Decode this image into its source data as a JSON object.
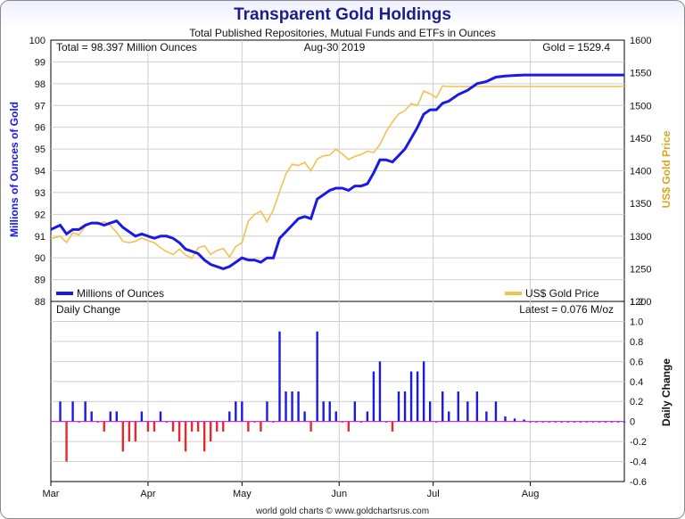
{
  "chart_data": {
    "type": "line",
    "title": "Transparent Gold Holdings",
    "subtitle": "Total Published Repositories, Mutual Funds and ETFs in Ounces",
    "annotations": {
      "total": "Total = 98.397 Million Ounces",
      "date": "Aug-30  2019",
      "gold": "Gold = 1529.4",
      "daily_title": "Daily Change",
      "latest": "Latest = 0.076 M/oz"
    },
    "ylabel_left": "Millions of Ounces of Gold",
    "ylabel_right": "US$ Gold Price",
    "ylabel_daily": "Daily Change",
    "footer": "world gold charts © www.goldchartsrus.com",
    "x_months": [
      "Mar",
      "Apr",
      "May",
      "Jun",
      "Jul",
      "Aug"
    ],
    "ylim_left": [
      88,
      100
    ],
    "yticks_left": [
      "100",
      "99",
      "98",
      "97",
      "96",
      "95",
      "94",
      "93",
      "92",
      "91",
      "90",
      "89",
      "88"
    ],
    "ylim_right": [
      1200,
      1600
    ],
    "yticks_right": [
      "1600",
      "1550",
      "1500",
      "1450",
      "1400",
      "1350",
      "1300",
      "1250",
      "1200"
    ],
    "ylim_daily": [
      -0.6,
      1.2
    ],
    "yticks_daily": [
      "1.2",
      "1.0",
      "0.8",
      "0.6",
      "0.4",
      "0.2",
      "0",
      "-0.2",
      "-0.4",
      "-0.6"
    ],
    "x_range": [
      0,
      183
    ],
    "month_days": [
      0,
      31,
      61,
      92,
      122,
      153
    ],
    "series": [
      {
        "name": "Millions of Ounces",
        "color": "#1a1ae6",
        "axis": "left",
        "x": [
          0,
          3,
          5,
          7,
          9,
          11,
          13,
          15,
          17,
          19,
          21,
          23,
          25,
          27,
          29,
          31,
          33,
          35,
          37,
          39,
          41,
          43,
          45,
          47,
          49,
          51,
          53,
          55,
          57,
          59,
          61,
          63,
          65,
          67,
          69,
          71,
          73,
          75,
          77,
          79,
          81,
          83,
          85,
          87,
          89,
          91,
          93,
          95,
          97,
          99,
          101,
          103,
          105,
          107,
          109,
          111,
          113,
          115,
          117,
          119,
          121,
          123,
          125,
          127,
          130,
          133,
          136,
          139,
          142,
          145,
          148,
          151,
          153,
          155,
          157,
          159,
          161,
          163,
          165,
          167,
          169,
          171,
          173,
          175,
          177,
          179,
          181,
          183
        ],
        "values": [
          91.3,
          91.5,
          91.1,
          91.3,
          91.3,
          91.5,
          91.6,
          91.6,
          91.5,
          91.6,
          91.7,
          91.4,
          91.2,
          91.0,
          91.1,
          91.0,
          90.9,
          91.0,
          91.0,
          90.9,
          90.7,
          90.4,
          90.3,
          90.2,
          89.9,
          89.7,
          89.6,
          89.5,
          89.6,
          89.8,
          90.0,
          89.9,
          89.9,
          89.8,
          90.0,
          90.0,
          90.9,
          91.2,
          91.5,
          91.8,
          91.9,
          91.8,
          92.7,
          92.9,
          93.1,
          93.2,
          93.2,
          93.1,
          93.3,
          93.3,
          93.4,
          93.9,
          94.5,
          94.5,
          94.4,
          94.7,
          95.0,
          95.5,
          96.0,
          96.6,
          96.8,
          96.8,
          97.1,
          97.2,
          97.5,
          97.7,
          98.0,
          98.1,
          98.3,
          98.35,
          98.38,
          98.4,
          98.4,
          98.4,
          98.4,
          98.4,
          98.4,
          98.4,
          98.4,
          98.4,
          98.4,
          98.4,
          98.4,
          98.4,
          98.4,
          98.4,
          98.4,
          98.4
        ]
      },
      {
        "name": "US$ Gold Price",
        "color": "#f2c24e",
        "axis": "right",
        "x": [
          0,
          3,
          5,
          7,
          9,
          11,
          13,
          15,
          17,
          19,
          21,
          23,
          25,
          27,
          29,
          31,
          33,
          35,
          37,
          39,
          41,
          43,
          45,
          47,
          49,
          51,
          53,
          55,
          57,
          59,
          61,
          63,
          65,
          67,
          69,
          71,
          73,
          75,
          77,
          79,
          81,
          83,
          85,
          87,
          89,
          91,
          93,
          95,
          97,
          99,
          101,
          103,
          105,
          107,
          109,
          111,
          113,
          115,
          117,
          119,
          121,
          123,
          125,
          127,
          130,
          133,
          136,
          139,
          142,
          145,
          148,
          151,
          153,
          155,
          157,
          159,
          161,
          163,
          165,
          167,
          169,
          171,
          173,
          175,
          177,
          179,
          181,
          183
        ],
        "values": [
          1296,
          1300,
          1290,
          1305,
          1302,
          1315,
          1320,
          1318,
          1322,
          1316,
          1306,
          1292,
          1290,
          1292,
          1297,
          1293,
          1290,
          1282,
          1276,
          1272,
          1280,
          1271,
          1266,
          1282,
          1285,
          1272,
          1278,
          1281,
          1268,
          1284,
          1290,
          1323,
          1333,
          1338,
          1322,
          1340,
          1368,
          1395,
          1410,
          1408,
          1413,
          1400,
          1418,
          1423,
          1424,
          1433,
          1426,
          1417,
          1422,
          1425,
          1430,
          1428,
          1440,
          1460,
          1475,
          1487,
          1492,
          1503,
          1500,
          1522,
          1518,
          1512,
          1530,
          1529,
          1529,
          1529,
          1529,
          1529,
          1529,
          1529,
          1529,
          1529,
          1529,
          1529,
          1529,
          1529,
          1529,
          1529,
          1529,
          1529,
          1529,
          1529,
          1529,
          1529,
          1529,
          1529,
          1529,
          1529
        ]
      }
    ]
  },
  "legend": {
    "left": "Millions of Ounces",
    "right": "US$ Gold Price"
  },
  "colors": {
    "holdings": "#1a1ae6",
    "gold": "#f2c24e",
    "positive": "#1a1ae6",
    "negative": "#e62a2a",
    "zero_line": "#e600e6"
  }
}
